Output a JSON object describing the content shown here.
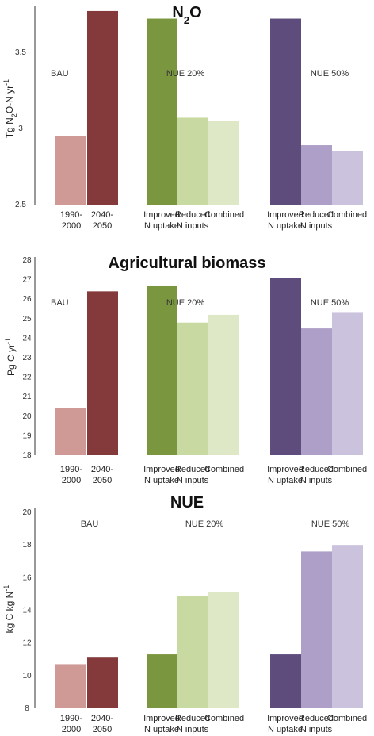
{
  "chart_data": [
    {
      "type": "bar",
      "title": "N2O",
      "title_parts": [
        "N",
        "2",
        "O"
      ],
      "ylabel": "Tg N2O-N yr-1",
      "ylabel_parts": [
        "Tg N",
        "2",
        "O-N yr",
        "-1"
      ],
      "ylim": [
        2.5,
        3.78
      ],
      "yticks": [
        "2.5",
        "3",
        "3.5"
      ],
      "groups": [
        "BAU",
        "NUE 20%",
        "NUE 50%"
      ],
      "categories": [
        [
          "1990-",
          "2000"
        ],
        [
          "2040-",
          "2050"
        ],
        [
          "Improved",
          "N uptake"
        ],
        [
          "Reduced",
          "N inputs"
        ],
        [
          "Combined"
        ],
        [
          "Improved",
          "N uptake"
        ],
        [
          "Reduced",
          "N inputs"
        ],
        [
          "Combined"
        ]
      ],
      "values": [
        2.95,
        3.77,
        3.72,
        3.07,
        3.05,
        3.72,
        2.89,
        2.85
      ]
    },
    {
      "type": "bar",
      "title": "Agricultural biomass",
      "ylabel": "Pg C yr-1",
      "ylabel_parts": [
        "Pg C yr",
        "-1"
      ],
      "ylim": [
        18,
        28
      ],
      "yticks": [
        "18",
        "19",
        "20",
        "21",
        "22",
        "23",
        "24",
        "25",
        "26",
        "27",
        "28"
      ],
      "groups": [
        "BAU",
        "NUE 20%",
        "NUE 50%"
      ],
      "categories": [
        [
          "1990-",
          "2000"
        ],
        [
          "2040-",
          "2050"
        ],
        [
          "Improved",
          "N uptake"
        ],
        [
          "Reduced",
          "N inputs"
        ],
        [
          "Combined"
        ],
        [
          "Improved",
          "N uptake"
        ],
        [
          "Reduced",
          "N inputs"
        ],
        [
          "Combined"
        ]
      ],
      "values": [
        20.4,
        26.4,
        26.7,
        24.8,
        25.2,
        27.1,
        24.5,
        25.3
      ]
    },
    {
      "type": "bar",
      "title": "NUE",
      "ylabel": "kg C kg N-1",
      "ylabel_parts": [
        "kg C kg N",
        "-1"
      ],
      "ylim": [
        8,
        20
      ],
      "yticks": [
        "8",
        "10",
        "12",
        "14",
        "16",
        "18",
        "20"
      ],
      "groups": [
        "BAU",
        "NUE 20%",
        "NUE 50%"
      ],
      "categories": [
        [
          "1990-",
          "2000"
        ],
        [
          "2040-",
          "2050"
        ],
        [
          "Improved",
          "N uptake"
        ],
        [
          "Reduced",
          "N inputs"
        ],
        [
          "Combined"
        ],
        [
          "Improved",
          "N uptake"
        ],
        [
          "Reduced",
          "N inputs"
        ],
        [
          "Combined"
        ]
      ],
      "values": [
        10.7,
        11.1,
        11.3,
        14.9,
        15.1,
        11.3,
        17.6,
        18.0
      ]
    }
  ],
  "colors": [
    "#cf9996",
    "#843a3a",
    "#7a963e",
    "#c9d9a2",
    "#dfe8c6",
    "#5e4c7c",
    "#ae9fc8",
    "#cbc2dd"
  ]
}
